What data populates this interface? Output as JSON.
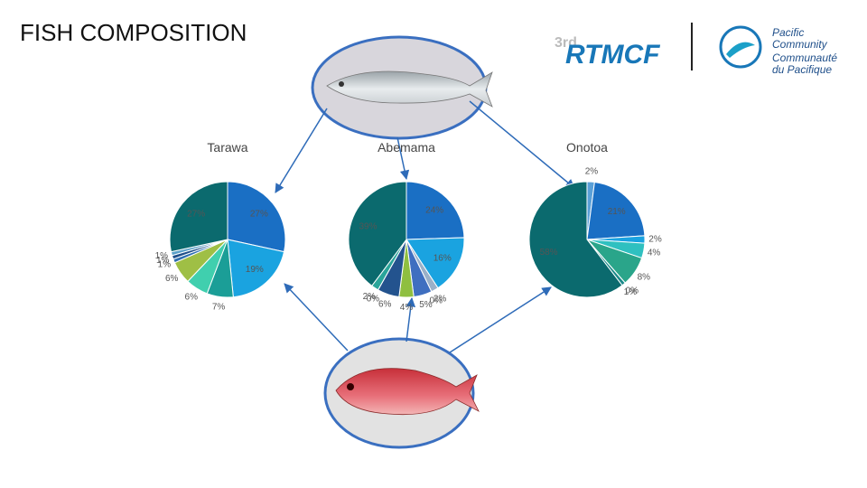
{
  "header": {
    "title": "FISH COMPOSITION"
  },
  "logos": {
    "event_ordinal": "3rd",
    "event": "RTMCF",
    "org_en_1": "Pacific",
    "org_en_2": "Community",
    "org_fr_1": "Communauté",
    "org_fr_2": "du Pacifique"
  },
  "chart_data": [
    {
      "type": "pie",
      "title": "Tarawa",
      "values": [
        27,
        19,
        7,
        6,
        6,
        1,
        1,
        1,
        27
      ],
      "value_labels": [
        "27%",
        "19%",
        "7%",
        "6%",
        "6%",
        "1%",
        "1%",
        "1%",
        "27%"
      ],
      "colors": [
        "#1a6fc4",
        "#1aa3e0",
        "#1b9e97",
        "#40cfae",
        "#9fbf45",
        "#2f6fb0",
        "#1e4f8a",
        "#5aa0c8",
        "#0b6a6e"
      ]
    },
    {
      "type": "pie",
      "title": "Abemama",
      "values": [
        24,
        16,
        2,
        0,
        5,
        4,
        6,
        0,
        2,
        39
      ],
      "value_labels": [
        "24%",
        "16%",
        "2%",
        "0%",
        "5%",
        "4%",
        "6%",
        "0%",
        "2%",
        "39%"
      ],
      "colors": [
        "#1a6fc4",
        "#1aa3e0",
        "#9ab0c8",
        "#cccccc",
        "#3f6fc0",
        "#8fbf40",
        "#23538e",
        "#999999",
        "#2aa59a",
        "#0b6a6e"
      ]
    },
    {
      "type": "pie",
      "title": "Onotoa",
      "values": [
        2,
        21,
        2,
        4,
        8,
        0,
        1,
        58
      ],
      "value_labels": [
        "2%",
        "21%",
        "2%",
        "4%",
        "8%",
        "0%",
        "1%",
        "58%"
      ],
      "colors": [
        "#5aa0d8",
        "#1a6fc4",
        "#1aa3e0",
        "#2fc0c0",
        "#2aa58a",
        "#999999",
        "#1b8a8a",
        "#0b6a6e"
      ]
    }
  ]
}
